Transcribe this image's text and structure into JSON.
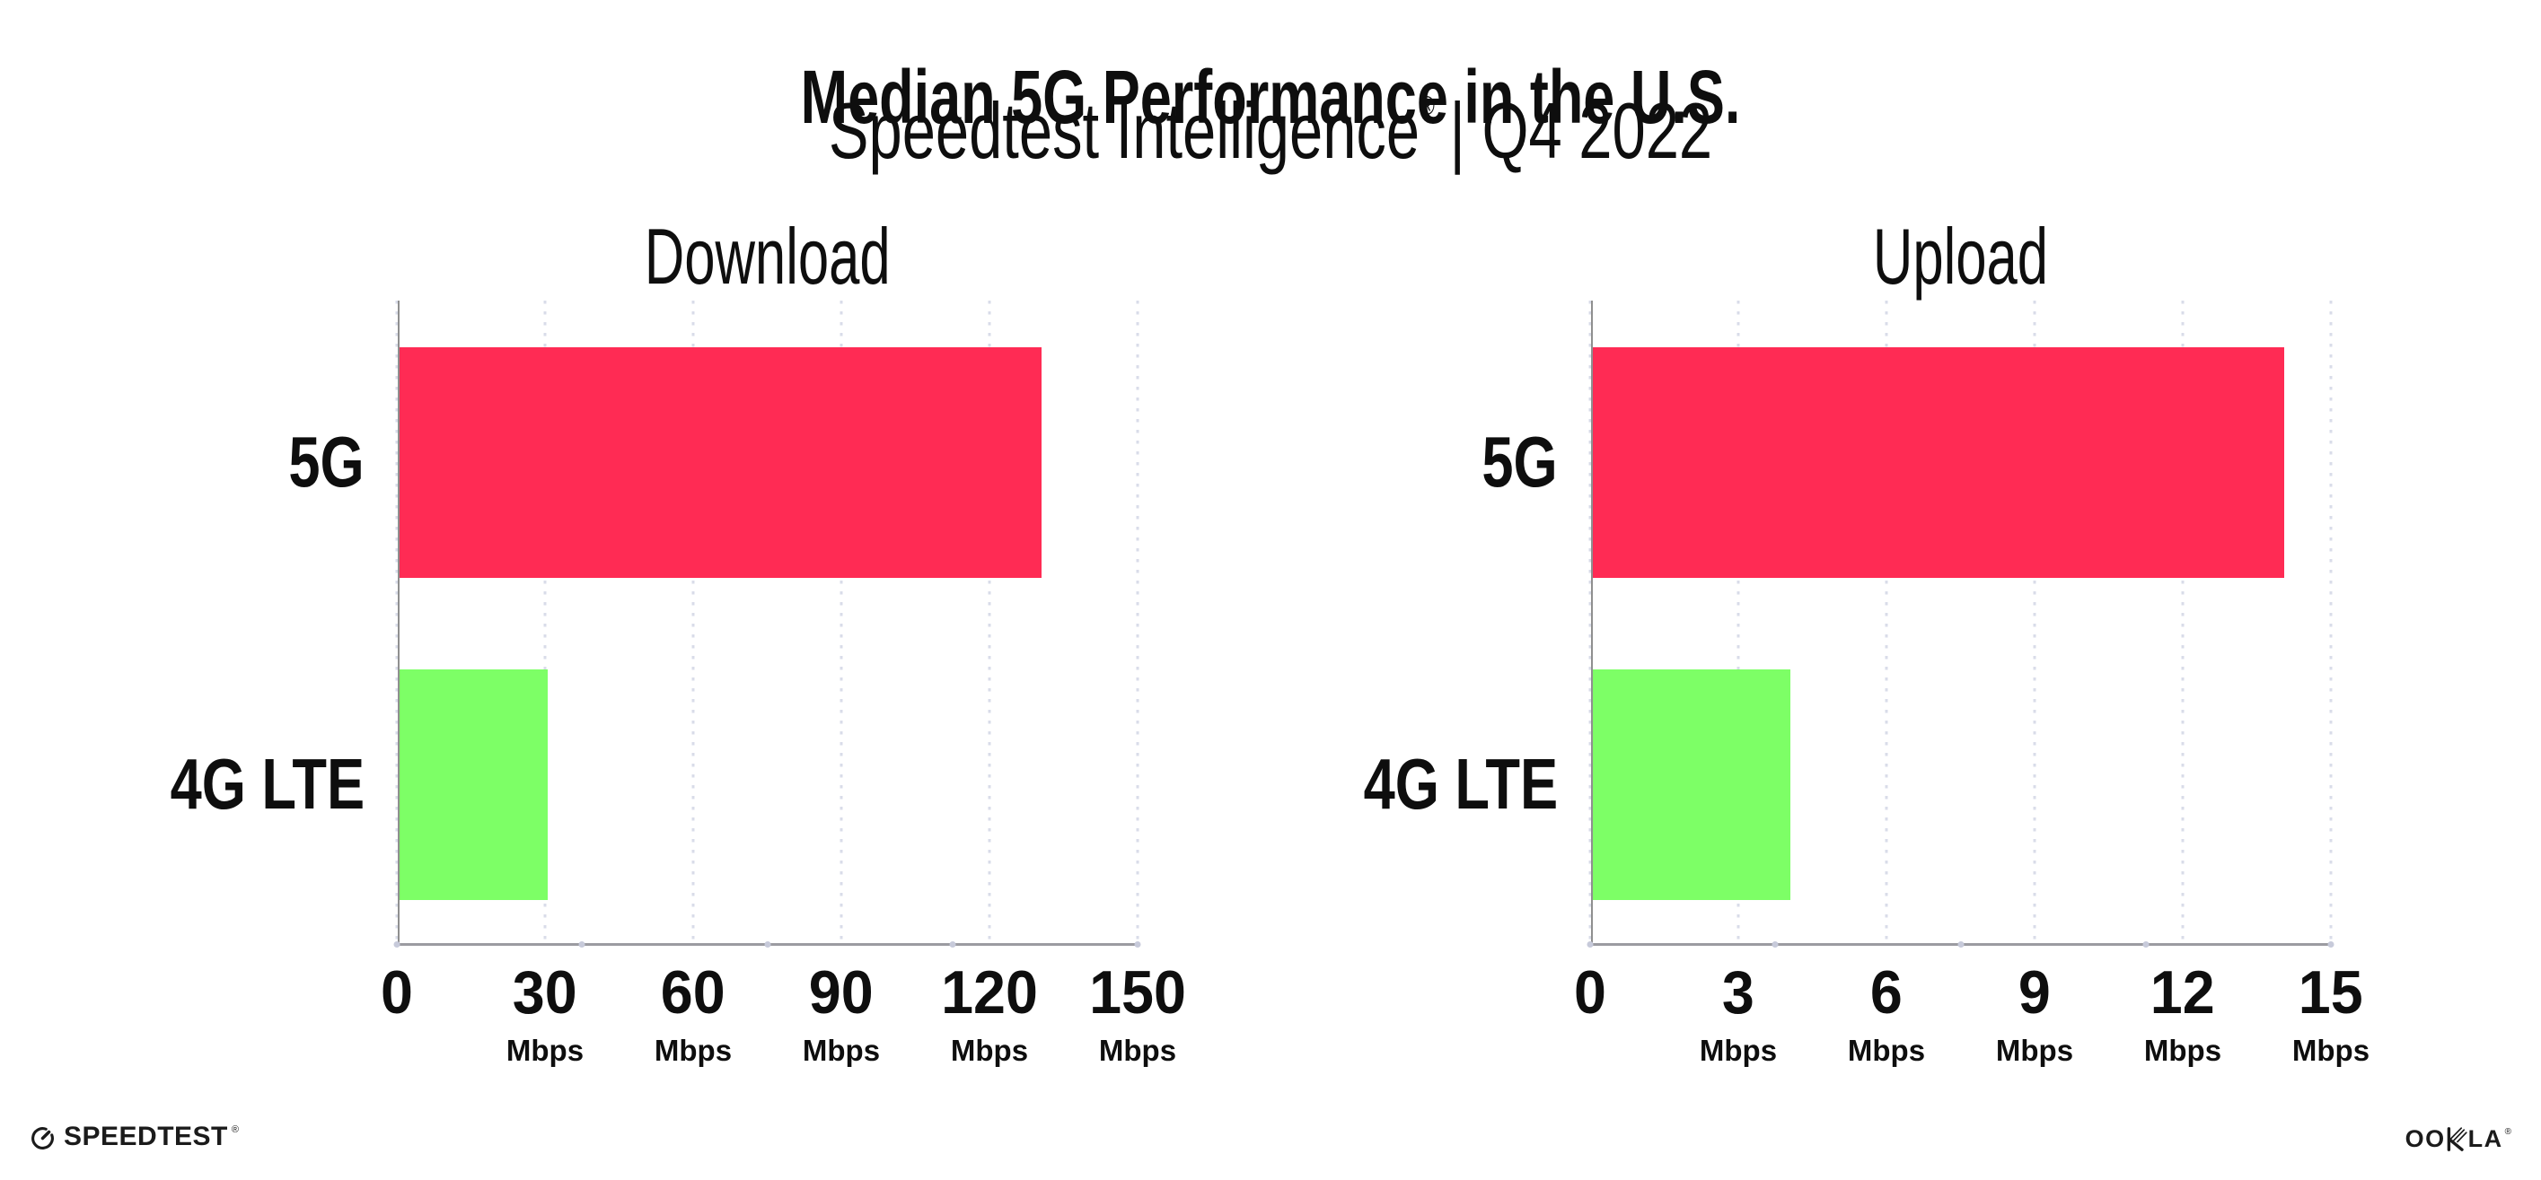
{
  "header": {
    "title": "Median 5G Performance in the U.S.",
    "subtitle_brand": "Speedtest Intelligence",
    "subtitle_reg": "®",
    "subtitle_rest": "| Q4 2022"
  },
  "chart_data": [
    {
      "type": "bar",
      "orientation": "horizontal",
      "title": "Download",
      "categories": [
        "5G",
        "4G LTE"
      ],
      "values": [
        130,
        30
      ],
      "unit": "Mbps",
      "xlim": [
        0,
        150
      ],
      "xticks": [
        0,
        30,
        60,
        90,
        120,
        150
      ],
      "tick_labels": [
        "0",
        "30",
        "60",
        "90",
        "120",
        "150"
      ],
      "tick_units": [
        "",
        "Mbps",
        "Mbps",
        "Mbps",
        "Mbps",
        "Mbps"
      ],
      "bar_colors": [
        "#ff2b54",
        "#7dff66"
      ],
      "grid": "dotted-vertical",
      "legend": "none"
    },
    {
      "type": "bar",
      "orientation": "horizontal",
      "title": "Upload",
      "categories": [
        "5G",
        "4G LTE"
      ],
      "values": [
        14,
        4
      ],
      "unit": "Mbps",
      "xlim": [
        0,
        15
      ],
      "xticks": [
        0,
        3,
        6,
        9,
        12,
        15
      ],
      "tick_labels": [
        "0",
        "3",
        "6",
        "9",
        "12",
        "15"
      ],
      "tick_units": [
        "",
        "Mbps",
        "Mbps",
        "Mbps",
        "Mbps",
        "Mbps"
      ],
      "bar_colors": [
        "#ff2b54",
        "#7dff66"
      ],
      "grid": "dotted-vertical",
      "legend": "none"
    }
  ],
  "footer": {
    "speedtest_label": "SPEEDTEST",
    "speedtest_reg": "®",
    "ookla_left": "OO",
    "ookla_right": "LA",
    "ookla_reg": "®"
  },
  "colors": {
    "bar_5g": "#ff2b54",
    "bar_4g_lte": "#7dff66",
    "y_axis": "#8f8f8f",
    "x_axis": "#9b9ba1",
    "gridline": "#d9dce9",
    "text": "#0e0e0e",
    "background": "#ffffff"
  }
}
